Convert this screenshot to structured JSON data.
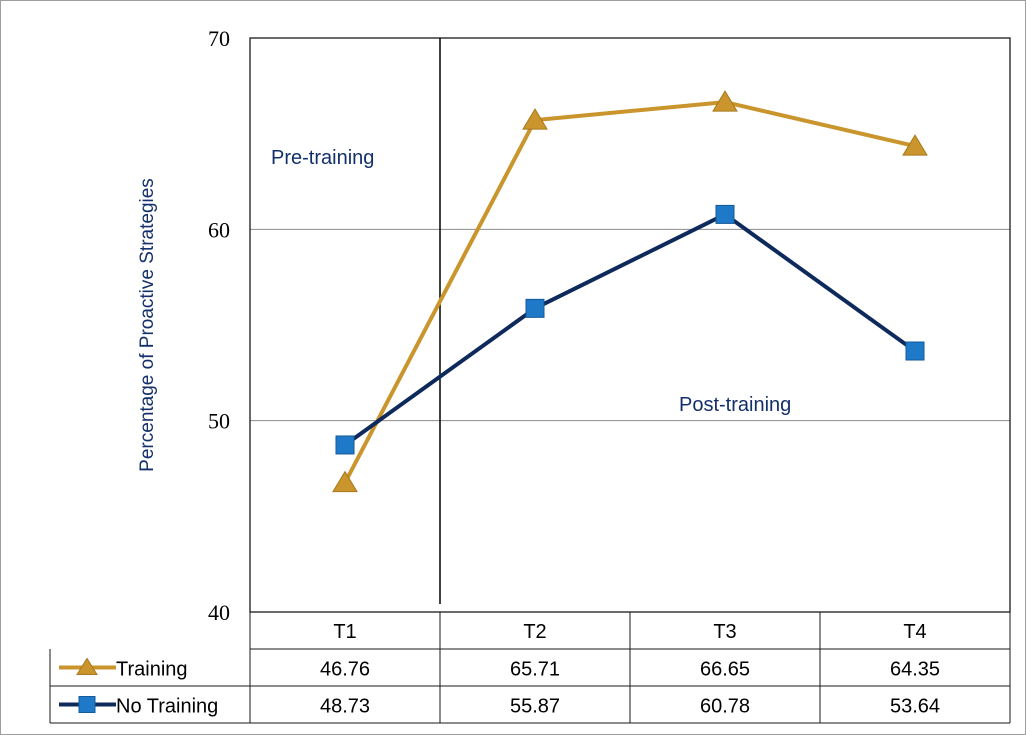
{
  "chart_data": {
    "type": "line",
    "title": "",
    "xlabel": "",
    "ylabel": "Percentage of Proactive Strategies",
    "ylim": [
      40,
      70
    ],
    "yticks": [
      40,
      50,
      60,
      70
    ],
    "categories": [
      "T1",
      "T2",
      "T3",
      "T4"
    ],
    "grid": true,
    "series": [
      {
        "name": "Training",
        "values": [
          46.76,
          65.71,
          66.65,
          64.35
        ],
        "value_labels": [
          "46.76",
          "65.71",
          "66.65",
          "64.35"
        ],
        "color": "#C9952C",
        "marker": "triangle"
      },
      {
        "name": "No Training",
        "values": [
          48.73,
          55.87,
          60.78,
          53.64
        ],
        "value_labels": [
          "48.73",
          "55.87",
          "60.78",
          "53.64"
        ],
        "color": "#0E2A5C",
        "marker_color": "#1E7AC8",
        "marker": "square"
      }
    ],
    "annotations": [
      {
        "text": "Pre-training"
      },
      {
        "text": "Post-training"
      }
    ],
    "legend": "data-table-below-axis"
  }
}
